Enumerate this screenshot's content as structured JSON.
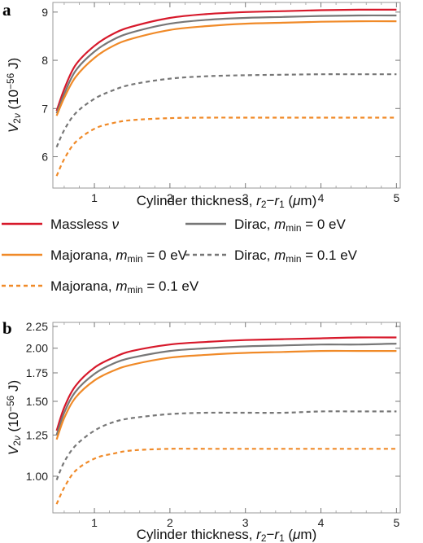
{
  "legend": {
    "items": [
      {
        "label_parts": [
          {
            "t": "Massless "
          },
          {
            "t": "ν",
            "style": "italic"
          }
        ],
        "color": "#d7192b",
        "dash": false
      },
      {
        "label_parts": [
          {
            "t": "Dirac, "
          },
          {
            "t": "m",
            "style": "italic"
          },
          {
            "t": "min",
            "style": "sub"
          },
          {
            "t": " = 0 eV"
          }
        ],
        "color": "#777777",
        "dash": false
      },
      {
        "label_parts": [
          {
            "t": "Majorana, "
          },
          {
            "t": "m",
            "style": "italic"
          },
          {
            "t": "min",
            "style": "sub"
          },
          {
            "t": " = 0 eV"
          }
        ],
        "color": "#f08a28",
        "dash": false
      },
      {
        "label_parts": [
          {
            "t": "Dirac, "
          },
          {
            "t": "m",
            "style": "italic"
          },
          {
            "t": "min",
            "style": "sub"
          },
          {
            "t": " = 0.1 eV"
          }
        ],
        "color": "#777777",
        "dash": true
      },
      {
        "label_parts": [
          {
            "t": "Majorana, "
          },
          {
            "t": "m",
            "style": "italic"
          },
          {
            "t": "min",
            "style": "sub"
          },
          {
            "t": " = 0.1 eV"
          }
        ],
        "color": "#f08a28",
        "dash": true
      }
    ]
  },
  "chart_data": [
    {
      "panel": "a",
      "type": "line",
      "xlabel_parts": [
        {
          "t": "Cylinder thickness, "
        },
        {
          "t": "r",
          "style": "italic"
        },
        {
          "t": "2",
          "style": "sub"
        },
        {
          "t": "−"
        },
        {
          "t": "r",
          "style": "italic"
        },
        {
          "t": "1",
          "style": "sub"
        },
        {
          "t": " ("
        },
        {
          "t": "μ",
          "style": "italic"
        },
        {
          "t": "m)"
        }
      ],
      "ylabel_parts": [
        {
          "t": "V",
          "style": "italic"
        },
        {
          "t": "2",
          "style": "sub"
        },
        {
          "t": "ν",
          "style": "subitalic"
        },
        {
          "t": " (10"
        },
        {
          "t": "−56",
          "style": "sup"
        },
        {
          "t": " J)"
        }
      ],
      "xlim": [
        0.45,
        5.05
      ],
      "ylim": [
        5.35,
        9.2
      ],
      "yscale": "linear",
      "xticks": [
        1,
        2,
        3,
        4,
        5
      ],
      "xtick_labels": [
        "1",
        "2",
        "3",
        "4",
        "5"
      ],
      "yticks": [
        6,
        7,
        8,
        9
      ],
      "ytick_labels": [
        "6",
        "7",
        "8",
        "9"
      ],
      "grid": false,
      "series": [
        {
          "color": "#d7192b",
          "dash": false,
          "x": [
            0.5,
            0.6,
            0.75,
            1.0,
            1.25,
            1.5,
            2.0,
            2.5,
            3.0,
            3.5,
            4.0,
            4.5,
            5.0
          ],
          "y": [
            6.95,
            7.4,
            7.9,
            8.3,
            8.55,
            8.7,
            8.88,
            8.96,
            9.0,
            9.02,
            9.04,
            9.05,
            9.05
          ]
        },
        {
          "color": "#777777",
          "dash": false,
          "x": [
            0.5,
            0.6,
            0.75,
            1.0,
            1.25,
            1.5,
            2.0,
            2.5,
            3.0,
            3.5,
            4.0,
            4.5,
            5.0
          ],
          "y": [
            6.9,
            7.3,
            7.78,
            8.18,
            8.43,
            8.58,
            8.76,
            8.84,
            8.88,
            8.9,
            8.92,
            8.93,
            8.93
          ]
        },
        {
          "color": "#f08a28",
          "dash": false,
          "x": [
            0.5,
            0.6,
            0.75,
            1.0,
            1.25,
            1.5,
            2.0,
            2.5,
            3.0,
            3.5,
            4.0,
            4.5,
            5.0
          ],
          "y": [
            6.85,
            7.22,
            7.65,
            8.05,
            8.3,
            8.45,
            8.63,
            8.71,
            8.76,
            8.78,
            8.8,
            8.81,
            8.81
          ]
        },
        {
          "color": "#777777",
          "dash": true,
          "x": [
            0.5,
            0.6,
            0.75,
            1.0,
            1.25,
            1.5,
            2.0,
            2.5,
            3.0,
            3.5,
            4.0,
            4.5,
            5.0
          ],
          "y": [
            6.2,
            6.55,
            6.9,
            7.2,
            7.38,
            7.5,
            7.62,
            7.67,
            7.69,
            7.7,
            7.71,
            7.71,
            7.71
          ]
        },
        {
          "color": "#f08a28",
          "dash": true,
          "x": [
            0.5,
            0.6,
            0.75,
            1.0,
            1.25,
            1.5,
            2.0,
            2.5,
            3.0,
            3.5,
            4.0,
            4.5,
            5.0
          ],
          "y": [
            5.6,
            5.95,
            6.3,
            6.58,
            6.7,
            6.76,
            6.8,
            6.81,
            6.81,
            6.81,
            6.81,
            6.81,
            6.81
          ]
        }
      ]
    },
    {
      "panel": "b",
      "type": "line",
      "xlabel_parts": [
        {
          "t": "Cylinder thickness, "
        },
        {
          "t": "r",
          "style": "italic"
        },
        {
          "t": "2",
          "style": "sub"
        },
        {
          "t": "−"
        },
        {
          "t": "r",
          "style": "italic"
        },
        {
          "t": "1",
          "style": "sub"
        },
        {
          "t": " ("
        },
        {
          "t": "μ",
          "style": "italic"
        },
        {
          "t": "m)"
        }
      ],
      "ylabel_parts": [
        {
          "t": "V",
          "style": "italic"
        },
        {
          "t": "2",
          "style": "sub"
        },
        {
          "t": "ν",
          "style": "subitalic"
        },
        {
          "t": " (10"
        },
        {
          "t": "−56",
          "style": "sup"
        },
        {
          "t": " J)"
        }
      ],
      "xlim": [
        0.45,
        5.05
      ],
      "ylim": [
        0.82,
        2.3
      ],
      "yscale": "log",
      "xticks": [
        1,
        2,
        3,
        4,
        5
      ],
      "xtick_labels": [
        "1",
        "2",
        "3",
        "4",
        "5"
      ],
      "yticks": [
        1.0,
        1.25,
        1.5,
        1.75,
        2.0,
        2.25
      ],
      "ytick_labels": [
        "1.00",
        "1.25",
        "1.50",
        "1.75",
        "2.00",
        "2.25"
      ],
      "grid": false,
      "series": [
        {
          "color": "#d7192b",
          "dash": false,
          "x": [
            0.5,
            0.6,
            0.75,
            1.0,
            1.25,
            1.5,
            2.0,
            2.5,
            3.0,
            3.5,
            4.0,
            4.5,
            5.0
          ],
          "y": [
            1.28,
            1.45,
            1.63,
            1.8,
            1.9,
            1.97,
            2.04,
            2.07,
            2.09,
            2.1,
            2.11,
            2.12,
            2.12
          ]
        },
        {
          "color": "#777777",
          "dash": false,
          "x": [
            0.5,
            0.6,
            0.75,
            1.0,
            1.25,
            1.5,
            2.0,
            2.5,
            3.0,
            3.5,
            4.0,
            4.5,
            5.0
          ],
          "y": [
            1.25,
            1.41,
            1.58,
            1.74,
            1.84,
            1.9,
            1.97,
            2.0,
            2.02,
            2.03,
            2.04,
            2.04,
            2.05
          ]
        },
        {
          "color": "#f08a28",
          "dash": false,
          "x": [
            0.5,
            0.6,
            0.75,
            1.0,
            1.25,
            1.5,
            2.0,
            2.5,
            3.0,
            3.5,
            4.0,
            4.5,
            5.0
          ],
          "y": [
            1.22,
            1.37,
            1.53,
            1.68,
            1.77,
            1.83,
            1.9,
            1.93,
            1.95,
            1.96,
            1.97,
            1.97,
            1.97
          ]
        },
        {
          "color": "#777777",
          "dash": true,
          "x": [
            0.5,
            0.6,
            0.75,
            1.0,
            1.25,
            1.5,
            2.0,
            2.5,
            3.0,
            3.5,
            4.0,
            4.5,
            5.0
          ],
          "y": [
            0.98,
            1.08,
            1.18,
            1.28,
            1.34,
            1.37,
            1.4,
            1.41,
            1.41,
            1.41,
            1.42,
            1.42,
            1.42
          ]
        },
        {
          "color": "#f08a28",
          "dash": true,
          "x": [
            0.5,
            0.6,
            0.75,
            1.0,
            1.25,
            1.5,
            2.0,
            2.5,
            3.0,
            3.5,
            4.0,
            4.5,
            5.0
          ],
          "y": [
            0.86,
            0.94,
            1.03,
            1.1,
            1.13,
            1.15,
            1.16,
            1.16,
            1.16,
            1.16,
            1.16,
            1.16,
            1.16
          ]
        }
      ]
    }
  ]
}
